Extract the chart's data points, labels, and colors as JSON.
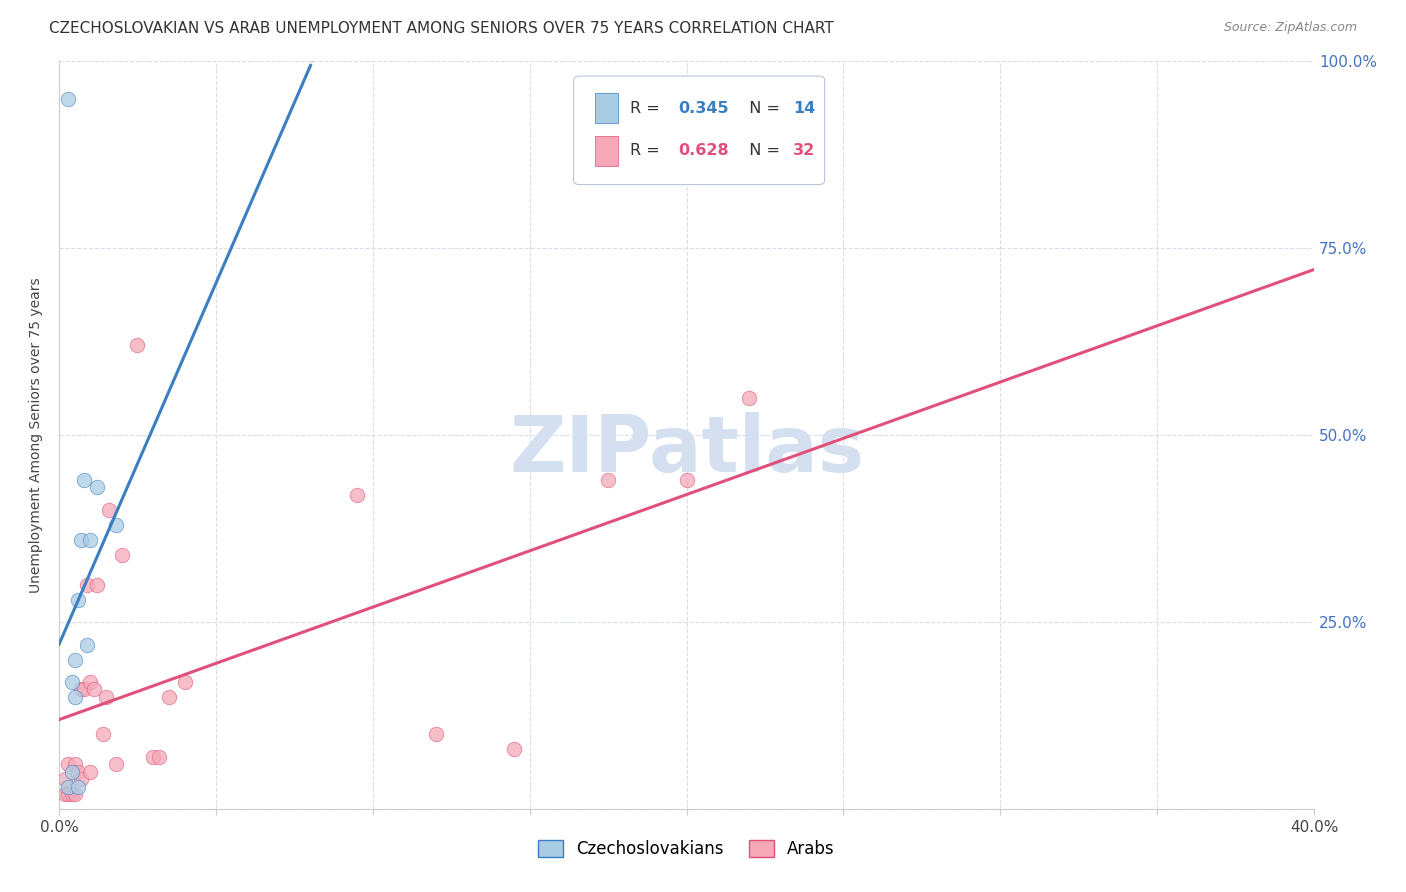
{
  "title": "CZECHOSLOVAKIAN VS ARAB UNEMPLOYMENT AMONG SENIORS OVER 75 YEARS CORRELATION CHART",
  "source": "Source: ZipAtlas.com",
  "ylabel": "Unemployment Among Seniors over 75 years",
  "xlim": [
    0,
    0.4
  ],
  "ylim": [
    0,
    1.0
  ],
  "czech_x": [
    0.003,
    0.004,
    0.004,
    0.005,
    0.005,
    0.006,
    0.006,
    0.007,
    0.008,
    0.009,
    0.01,
    0.012,
    0.018,
    0.003
  ],
  "czech_y": [
    0.03,
    0.05,
    0.17,
    0.15,
    0.2,
    0.03,
    0.28,
    0.36,
    0.44,
    0.22,
    0.36,
    0.43,
    0.38,
    0.95
  ],
  "arab_x": [
    0.002,
    0.002,
    0.003,
    0.003,
    0.004,
    0.005,
    0.005,
    0.006,
    0.007,
    0.007,
    0.008,
    0.009,
    0.01,
    0.01,
    0.011,
    0.012,
    0.014,
    0.015,
    0.016,
    0.018,
    0.02,
    0.025,
    0.03,
    0.032,
    0.035,
    0.04,
    0.095,
    0.12,
    0.145,
    0.175,
    0.2,
    0.22
  ],
  "arab_y": [
    0.02,
    0.04,
    0.02,
    0.06,
    0.02,
    0.02,
    0.06,
    0.05,
    0.04,
    0.16,
    0.16,
    0.3,
    0.05,
    0.17,
    0.16,
    0.3,
    0.1,
    0.15,
    0.4,
    0.06,
    0.34,
    0.62,
    0.07,
    0.07,
    0.15,
    0.17,
    0.42,
    0.1,
    0.08,
    0.44,
    0.44,
    0.55
  ],
  "czech_color": "#a8cce4",
  "arab_color": "#f4a8b8",
  "czech_edge_color": "#3a7fc1",
  "arab_edge_color": "#e0507a",
  "czech_line_color": "#3a7fc1",
  "arab_line_color": "#e0507a",
  "gray_line_color": "#b8c4d8",
  "czech_R": 0.345,
  "czech_N": 14,
  "arab_R": 0.628,
  "arab_N": 32,
  "watermark_text": "ZIPatlas",
  "watermark_color": "#d4dff0",
  "right_tick_color": "#4472c4",
  "grid_color": "#d8dde8",
  "title_fontsize": 11,
  "axis_label_fontsize": 10,
  "tick_fontsize": 11,
  "marker_size": 110,
  "legend_czech_label": "Czechoslovakians",
  "legend_arab_label": "Arabs"
}
